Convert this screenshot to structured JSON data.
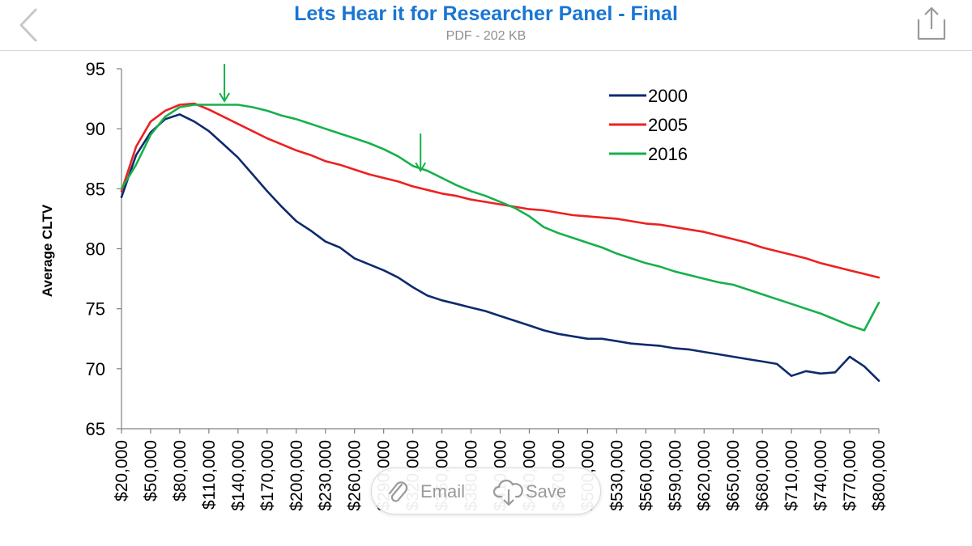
{
  "header": {
    "title": "Lets Hear it for Researcher Panel - Final",
    "subtitle": "PDF - 202 KB",
    "back_icon": "chevron-left-icon",
    "share_icon": "share-icon"
  },
  "toolbar": {
    "email_label": "Email",
    "save_label": "Save",
    "email_icon": "paperclip-icon",
    "save_icon": "cloud-download-icon"
  },
  "chart_data": {
    "type": "line",
    "title": "",
    "xlabel": "",
    "ylabel": "Average CLTV",
    "ylim": [
      65,
      95
    ],
    "yticks": [
      65,
      70,
      75,
      80,
      85,
      90,
      95
    ],
    "xlim": [
      20000,
      800000
    ],
    "xtick_labels": [
      "$20,000",
      "$50,000",
      "$80,000",
      "$110,000",
      "$140,000",
      "$170,000",
      "$200,000",
      "$230,000",
      "$260,000",
      "$290,000",
      "$320,000",
      "$350,000",
      "$380,000",
      "$410,000",
      "$440,000",
      "$470,000",
      "$500,000",
      "$530,000",
      "$560,000",
      "$590,000",
      "$620,000",
      "$650,000",
      "$680,000",
      "$710,000",
      "$740,000",
      "$770,000",
      "$800,000"
    ],
    "legend_position": "top-right",
    "grid": false,
    "series": [
      {
        "name": "2000",
        "color": "#0e2a6e",
        "x": [
          20000,
          35000,
          50000,
          65000,
          80000,
          95000,
          110000,
          125000,
          140000,
          155000,
          170000,
          185000,
          200000,
          215000,
          230000,
          245000,
          260000,
          275000,
          290000,
          305000,
          320000,
          335000,
          350000,
          365000,
          380000,
          395000,
          410000,
          425000,
          440000,
          455000,
          470000,
          485000,
          500000,
          515000,
          530000,
          545000,
          560000,
          575000,
          590000,
          605000,
          620000,
          635000,
          650000,
          665000,
          680000,
          695000,
          710000,
          725000,
          740000,
          755000,
          770000,
          785000,
          800000
        ],
        "y": [
          84.3,
          87.8,
          89.7,
          90.8,
          91.2,
          90.6,
          89.8,
          88.7,
          87.6,
          86.2,
          84.8,
          83.5,
          82.3,
          81.5,
          80.6,
          80.1,
          79.2,
          78.7,
          78.2,
          77.6,
          76.8,
          76.1,
          75.7,
          75.4,
          75.1,
          74.8,
          74.4,
          74.0,
          73.6,
          73.2,
          72.9,
          72.7,
          72.5,
          72.5,
          72.3,
          72.1,
          72.0,
          71.9,
          71.7,
          71.6,
          71.4,
          71.2,
          71.0,
          70.8,
          70.6,
          70.4,
          69.4,
          69.8,
          69.6,
          69.7,
          71.0,
          70.2,
          69.0
        ]
      },
      {
        "name": "2005",
        "color": "#ee2020",
        "x": [
          20000,
          35000,
          50000,
          65000,
          80000,
          95000,
          110000,
          125000,
          140000,
          155000,
          170000,
          185000,
          200000,
          215000,
          230000,
          245000,
          260000,
          275000,
          290000,
          305000,
          320000,
          335000,
          350000,
          365000,
          380000,
          395000,
          410000,
          425000,
          440000,
          455000,
          470000,
          485000,
          500000,
          515000,
          530000,
          545000,
          560000,
          575000,
          590000,
          605000,
          620000,
          635000,
          650000,
          665000,
          680000,
          695000,
          710000,
          725000,
          740000,
          755000,
          770000,
          785000,
          800000
        ],
        "y": [
          84.8,
          88.5,
          90.6,
          91.5,
          92.0,
          92.1,
          91.6,
          91.0,
          90.4,
          89.8,
          89.2,
          88.7,
          88.2,
          87.8,
          87.3,
          87.0,
          86.6,
          86.2,
          85.9,
          85.6,
          85.2,
          84.9,
          84.6,
          84.4,
          84.1,
          83.9,
          83.7,
          83.5,
          83.3,
          83.2,
          83.0,
          82.8,
          82.7,
          82.6,
          82.5,
          82.3,
          82.1,
          82.0,
          81.8,
          81.6,
          81.4,
          81.1,
          80.8,
          80.5,
          80.1,
          79.8,
          79.5,
          79.2,
          78.8,
          78.5,
          78.2,
          77.9,
          77.6
        ]
      },
      {
        "name": "2016",
        "color": "#16b04b",
        "x": [
          20000,
          35000,
          50000,
          65000,
          80000,
          95000,
          110000,
          125000,
          140000,
          155000,
          170000,
          185000,
          200000,
          215000,
          230000,
          245000,
          260000,
          275000,
          290000,
          305000,
          320000,
          335000,
          350000,
          365000,
          380000,
          395000,
          410000,
          425000,
          440000,
          455000,
          470000,
          485000,
          500000,
          515000,
          530000,
          545000,
          560000,
          575000,
          590000,
          605000,
          620000,
          635000,
          650000,
          665000,
          680000,
          695000,
          710000,
          725000,
          740000,
          755000,
          770000,
          785000,
          800000
        ],
        "y": [
          85.0,
          87.0,
          89.5,
          91.0,
          91.8,
          92.0,
          92.0,
          92.0,
          92.0,
          91.8,
          91.5,
          91.1,
          90.8,
          90.4,
          90.0,
          89.6,
          89.2,
          88.8,
          88.3,
          87.7,
          86.9,
          86.5,
          85.9,
          85.3,
          84.8,
          84.4,
          83.9,
          83.4,
          82.7,
          81.8,
          81.3,
          80.9,
          80.5,
          80.1,
          79.6,
          79.2,
          78.8,
          78.5,
          78.1,
          77.8,
          77.5,
          77.2,
          77.0,
          76.6,
          76.2,
          75.8,
          75.4,
          75.0,
          74.6,
          74.1,
          73.6,
          73.2,
          75.5
        ]
      }
    ],
    "annotations": [
      {
        "type": "arrow-down",
        "x": 126000,
        "y": 92.3,
        "color": "#16b04b"
      },
      {
        "type": "arrow-down",
        "x": 328000,
        "y": 86.5,
        "color": "#16b04b"
      }
    ]
  }
}
